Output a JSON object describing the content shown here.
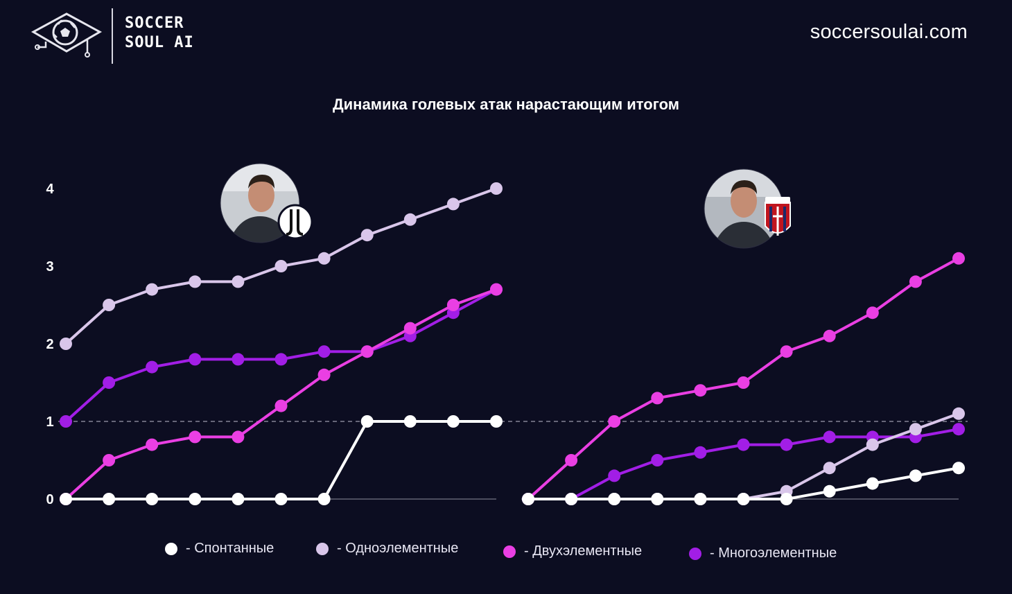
{
  "brand": {
    "line1": "SOCCER",
    "line2": "SOUL AI",
    "site": "soccersoulai.com"
  },
  "title": "Динамика голевых атак нарастающим итогом",
  "colors": {
    "background": "#0c0d21",
    "spontaneous": "#ffffff",
    "one_element": "#d9c6ea",
    "two_element": "#ea3fe3",
    "multi_element": "#a21ee6"
  },
  "legend": [
    {
      "key": "spontaneous",
      "label": "- Спонтанные"
    },
    {
      "key": "one_element",
      "label": "- Одноэлементные"
    },
    {
      "key": "two_element",
      "label": "- Двухэлементные"
    },
    {
      "key": "multi_element",
      "label": "- Многоэлементные"
    }
  ],
  "chart_data": [
    {
      "type": "line",
      "panel": "Juventus",
      "badge": "juventus-crest",
      "y_ticks": [
        "0",
        "1",
        "2",
        "3",
        "4"
      ],
      "ylim": [
        0,
        4
      ],
      "reference_line": 1,
      "x": [
        1,
        2,
        3,
        4,
        5,
        6,
        7,
        8,
        9,
        10,
        11
      ],
      "series": [
        {
          "key": "one_element",
          "values": [
            2.0,
            2.5,
            2.7,
            2.8,
            2.8,
            3.0,
            3.1,
            3.4,
            3.6,
            3.8,
            4.0
          ]
        },
        {
          "key": "multi_element",
          "values": [
            1.0,
            1.5,
            1.7,
            1.8,
            1.8,
            1.8,
            1.9,
            1.9,
            2.1,
            2.4,
            2.7
          ]
        },
        {
          "key": "two_element",
          "values": [
            0.0,
            0.5,
            0.7,
            0.8,
            0.8,
            1.2,
            1.6,
            1.9,
            2.2,
            2.5,
            2.7
          ]
        },
        {
          "key": "spontaneous",
          "values": [
            0,
            0,
            0,
            0,
            0,
            0,
            0,
            1,
            1,
            1,
            1
          ]
        }
      ]
    },
    {
      "type": "line",
      "panel": "Bologna",
      "badge": "bologna-crest",
      "ylim": [
        0,
        4
      ],
      "reference_line": 1,
      "x": [
        1,
        2,
        3,
        4,
        5,
        6,
        7,
        8,
        9,
        10,
        11
      ],
      "series": [
        {
          "key": "two_element",
          "values": [
            0.0,
            0.5,
            1.0,
            1.3,
            1.4,
            1.5,
            1.9,
            2.1,
            2.4,
            2.8,
            3.1
          ]
        },
        {
          "key": "multi_element",
          "values": [
            0.0,
            0.0,
            0.3,
            0.5,
            0.6,
            0.7,
            0.7,
            0.8,
            0.8,
            0.8,
            0.9
          ]
        },
        {
          "key": "one_element",
          "values": [
            0.0,
            0.0,
            0.0,
            0.0,
            0.0,
            0.0,
            0.1,
            0.4,
            0.7,
            0.9,
            1.1
          ]
        },
        {
          "key": "spontaneous",
          "values": [
            0.0,
            0.0,
            0.0,
            0.0,
            0.0,
            0.0,
            0.0,
            0.1,
            0.2,
            0.3,
            0.4
          ]
        }
      ]
    }
  ]
}
